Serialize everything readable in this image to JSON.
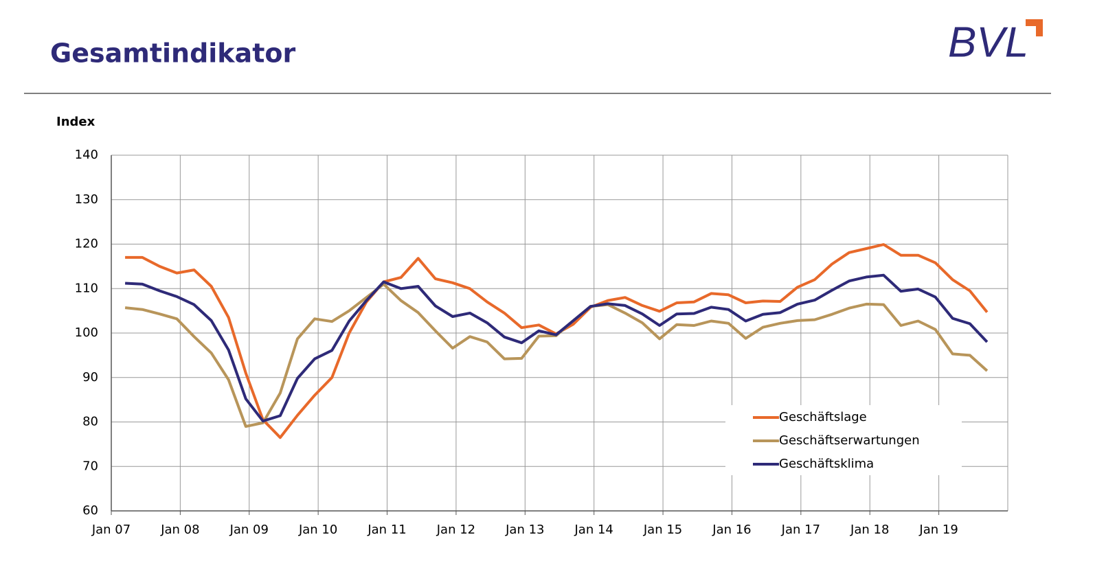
{
  "header": {
    "title": "Gesamtindikator",
    "logo": "BVL"
  },
  "chart_data": {
    "type": "line",
    "ylabel": "Index",
    "x": [
      2007.2,
      2007.45,
      2007.7,
      2007.95,
      2008.2,
      2008.45,
      2008.7,
      2008.95,
      2009.2,
      2009.45,
      2009.7,
      2009.95,
      2010.2,
      2010.45,
      2010.7,
      2010.95,
      2011.2,
      2011.45,
      2011.7,
      2011.95,
      2012.2,
      2012.45,
      2012.7,
      2012.95,
      2013.2,
      2013.45,
      2013.7,
      2013.95,
      2014.2,
      2014.45,
      2014.7,
      2014.95,
      2015.2,
      2015.45,
      2015.7,
      2015.95,
      2016.2,
      2016.45,
      2016.7,
      2016.95,
      2017.2,
      2017.45,
      2017.7,
      2017.95,
      2018.2,
      2018.45,
      2018.7,
      2018.95,
      2019.2,
      2019.45,
      2019.7
    ],
    "series": [
      {
        "name": "Geschäftslage",
        "color": "#e8692a",
        "values": [
          117,
          117,
          115,
          113.5,
          114.2,
          110.5,
          103.5,
          91,
          80.5,
          76.5,
          81.5,
          86,
          90,
          100,
          107,
          111.5,
          112.5,
          116.8,
          112.2,
          111.3,
          110,
          107,
          104.5,
          101.2,
          101.8,
          99.8,
          102,
          105.8,
          107.3,
          108,
          106.2,
          104.9,
          106.8,
          107,
          108.9,
          108.6,
          106.8,
          107.2,
          107.1,
          110.3,
          112,
          115.5,
          118.1,
          119,
          119.9,
          117.5,
          117.5,
          115.8,
          112,
          109.5,
          104.7
        ]
      },
      {
        "name": "Geschäftserwartungen",
        "color": "#b8955a",
        "values": [
          105.7,
          105.3,
          104.3,
          103.2,
          99.2,
          95.5,
          89.5,
          79,
          79.8,
          86.5,
          98.7,
          103.2,
          102.6,
          105,
          108,
          111,
          107.3,
          104.6,
          100.5,
          96.6,
          99.2,
          98,
          94.2,
          94.3,
          99.3,
          99.4,
          102.8,
          106,
          106.4,
          104.5,
          102.3,
          98.7,
          101.9,
          101.7,
          102.7,
          102.2,
          98.8,
          101.3,
          102.2,
          102.8,
          103,
          104.2,
          105.6,
          106.5,
          106.4,
          101.7,
          102.7,
          100.8,
          95.3,
          95,
          91.5
        ]
      },
      {
        "name": "Geschäftsklima",
        "color": "#2e2a78",
        "values": [
          111.2,
          111,
          109.5,
          108.2,
          106.4,
          102.8,
          96.2,
          85.2,
          80.2,
          81.4,
          89.8,
          94.2,
          96.1,
          102.7,
          107.3,
          111.5,
          110,
          110.5,
          106.1,
          103.7,
          104.5,
          102.3,
          99.1,
          97.8,
          100.5,
          99.6,
          102.8,
          106,
          106.6,
          106.2,
          104.3,
          101.7,
          104.3,
          104.4,
          105.8,
          105.3,
          102.7,
          104.2,
          104.6,
          106.5,
          107.4,
          109.6,
          111.7,
          112.6,
          113,
          109.4,
          109.9,
          108.1,
          103.3,
          102.1,
          98
        ]
      }
    ],
    "xlim": [
      2007,
      2020
    ],
    "xticks": [
      {
        "value": 2007,
        "label": "Jan 07"
      },
      {
        "value": 2008,
        "label": "Jan 08"
      },
      {
        "value": 2009,
        "label": "Jan 09"
      },
      {
        "value": 2010,
        "label": "Jan 10"
      },
      {
        "value": 2011,
        "label": "Jan 11"
      },
      {
        "value": 2012,
        "label": "Jan 12"
      },
      {
        "value": 2013,
        "label": "Jan 13"
      },
      {
        "value": 2014,
        "label": "Jan 14"
      },
      {
        "value": 2015,
        "label": "Jan 15"
      },
      {
        "value": 2016,
        "label": "Jan 16"
      },
      {
        "value": 2017,
        "label": "Jan 17"
      },
      {
        "value": 2018,
        "label": "Jan 18"
      },
      {
        "value": 2019,
        "label": "Jan 19"
      }
    ],
    "ylim": [
      60,
      140
    ],
    "yticks": [
      60,
      70,
      80,
      90,
      100,
      110,
      120,
      130,
      140
    ],
    "grid": true,
    "legend": "lower right"
  }
}
